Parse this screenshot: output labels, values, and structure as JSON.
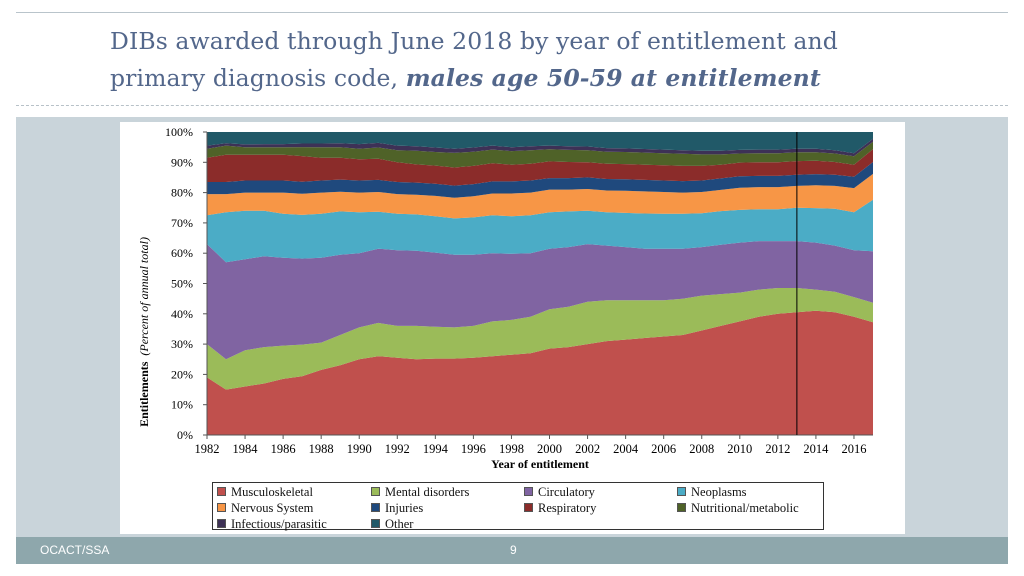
{
  "title": {
    "line1": "DIBs awarded through June 2018 by year of entitlement and",
    "line2_plain": "primary diagnosis code,",
    "line2_emphasis": "males age 50-59 at entitlement"
  },
  "footer": {
    "left": "OCACT/SSA",
    "page": "9"
  },
  "colors": {
    "slide_bg": "#c9d4da",
    "footer_bg": "#8ea7ac",
    "title_color": "#53678b"
  },
  "chart_data": {
    "type": "area",
    "stacked": true,
    "normalized": true,
    "xlabel": "Year of entitlement",
    "ylabel_bold": "Entitlements",
    "ylabel_italic": "(Percent of annual total)",
    "x": [
      1982,
      1983,
      1984,
      1985,
      1986,
      1987,
      1988,
      1989,
      1990,
      1991,
      1992,
      1993,
      1994,
      1995,
      1996,
      1997,
      1998,
      1999,
      2000,
      2001,
      2002,
      2003,
      2004,
      2005,
      2006,
      2007,
      2008,
      2009,
      2010,
      2011,
      2012,
      2013,
      2014,
      2015,
      2016,
      2017
    ],
    "xlim": [
      1982,
      2017
    ],
    "ylim": [
      0,
      100
    ],
    "x_tick_labels": [
      "1982",
      "1984",
      "1986",
      "1988",
      "1990",
      "1992",
      "1994",
      "1996",
      "1998",
      "2000",
      "2002",
      "2004",
      "2006",
      "2008",
      "2010",
      "2012",
      "2014",
      "2016"
    ],
    "y_tick_labels": [
      "0%",
      "10%",
      "20%",
      "30%",
      "40%",
      "50%",
      "60%",
      "70%",
      "80%",
      "90%",
      "100%"
    ],
    "vertical_marker_year": 2013,
    "series": [
      {
        "name": "Musculoskeletal",
        "color": "#c0504d",
        "values": [
          19,
          15,
          16,
          17,
          18.5,
          19.5,
          21.5,
          23,
          25,
          26,
          25.5,
          25,
          25.2,
          25.2,
          25.5,
          26,
          26.5,
          27,
          28.5,
          29,
          30,
          31,
          31.5,
          32,
          32.5,
          33,
          34.5,
          36,
          37.5,
          39,
          40,
          40.5,
          41,
          40.5,
          39,
          35
        ]
      },
      {
        "name": "Mental disorders",
        "color": "#9bbb59",
        "values": [
          11,
          10,
          12,
          12,
          11,
          10.5,
          9,
          10,
          10.5,
          11,
          10.5,
          11,
          10.5,
          10.3,
          10.5,
          11.5,
          11.5,
          12,
          13,
          13.3,
          14,
          13.5,
          13,
          12.5,
          12,
          12,
          11.5,
          10.5,
          9.5,
          9,
          8.5,
          8,
          7,
          6.8,
          6.5,
          6
        ]
      },
      {
        "name": "Circulatory",
        "color": "#8064a2",
        "values": [
          33,
          32,
          30,
          30,
          29,
          28.5,
          28,
          26.5,
          24.5,
          24.5,
          25,
          24.8,
          24.5,
          24,
          23.5,
          22.5,
          21.8,
          21,
          20,
          19.7,
          19,
          18,
          17.5,
          17,
          17,
          16.5,
          16,
          16.3,
          16.5,
          16,
          15.5,
          15.5,
          15.5,
          15.2,
          15.5,
          16
        ]
      },
      {
        "name": "Neoplasms",
        "color": "#4bacc6",
        "values": [
          9.5,
          16.5,
          16,
          15,
          14.5,
          14.5,
          14.5,
          14.3,
          13.5,
          12.2,
          12,
          12,
          12,
          12,
          12.3,
          12.5,
          12.4,
          12.5,
          12,
          11.8,
          11,
          11,
          11.3,
          11.6,
          11.5,
          11.5,
          11.2,
          11.1,
          10.8,
          10.5,
          10.5,
          11,
          11.4,
          12.2,
          12.5,
          16
        ]
      },
      {
        "name": "Nervous System",
        "color": "#f79646",
        "values": [
          7,
          6,
          6,
          6,
          7,
          7,
          7,
          6.5,
          6.5,
          6.5,
          6.5,
          6.5,
          6.7,
          6.8,
          7,
          7.2,
          7.5,
          7.5,
          7.5,
          7.2,
          7.2,
          7.2,
          7.3,
          7.3,
          7.2,
          7,
          7,
          7,
          7.3,
          7.3,
          7.3,
          7.2,
          7.5,
          7.5,
          8,
          8
        ]
      },
      {
        "name": "Injuries",
        "color": "#1f497d",
        "values": [
          4,
          4,
          4,
          4,
          4,
          4,
          4,
          4,
          4,
          4,
          4,
          4,
          4,
          4,
          4,
          4,
          4,
          4,
          3.8,
          3.8,
          3.8,
          3.8,
          3.8,
          3.8,
          3.8,
          3.8,
          3.8,
          3.8,
          3.8,
          3.7,
          3.7,
          3.7,
          3.7,
          3.7,
          3.7,
          3.7
        ]
      },
      {
        "name": "Respiratory",
        "color": "#8b2c2a",
        "values": [
          8,
          9,
          8.5,
          8.5,
          8.5,
          8.5,
          7.5,
          7.2,
          7,
          7,
          6.5,
          6,
          6,
          6,
          6,
          6,
          5.5,
          5.5,
          5.5,
          5.3,
          5,
          5,
          5,
          5,
          5,
          5,
          4.8,
          4.5,
          4.5,
          4.5,
          4.5,
          4.5,
          4.4,
          4.2,
          4,
          4
        ]
      },
      {
        "name": "Nutritional/metabolic",
        "color": "#4f6228",
        "values": [
          3,
          3,
          2.5,
          2.5,
          2.5,
          3,
          3.5,
          3.5,
          3.5,
          3.7,
          4,
          4.5,
          4.5,
          4.8,
          4.7,
          4.5,
          4.5,
          4.5,
          4,
          4,
          4,
          4,
          4,
          4,
          4,
          4,
          3.8,
          3.4,
          3,
          3,
          3,
          2.9,
          2.8,
          2.8,
          2.8,
          2.3
        ]
      },
      {
        "name": "Infectious/parasitic",
        "color": "#3d3156",
        "values": [
          1,
          0.8,
          0.9,
          1,
          1,
          1.2,
          1.2,
          1.3,
          1.5,
          1.5,
          1.5,
          1.5,
          1.5,
          1.4,
          1.4,
          1.3,
          1.3,
          1.3,
          1.2,
          1.2,
          1.2,
          1.2,
          1.2,
          1.2,
          1.2,
          1.2,
          1.2,
          1.2,
          1.2,
          1.2,
          1.2,
          1.2,
          1.2,
          1.1,
          1,
          0.9
        ]
      },
      {
        "name": "Other",
        "color": "#215968",
        "values": [
          4.5,
          3.7,
          4.1,
          4,
          4,
          3.8,
          3.8,
          3.7,
          4,
          3.6,
          4.5,
          4.7,
          5.1,
          5.5,
          5.1,
          4.5,
          5,
          4.7,
          4.5,
          4.7,
          4.8,
          5.3,
          5.4,
          5.6,
          5.8,
          6,
          6.2,
          6.2,
          5.9,
          5.8,
          5.8,
          5.5,
          5.5,
          6,
          7,
          2.1
        ]
      }
    ]
  }
}
